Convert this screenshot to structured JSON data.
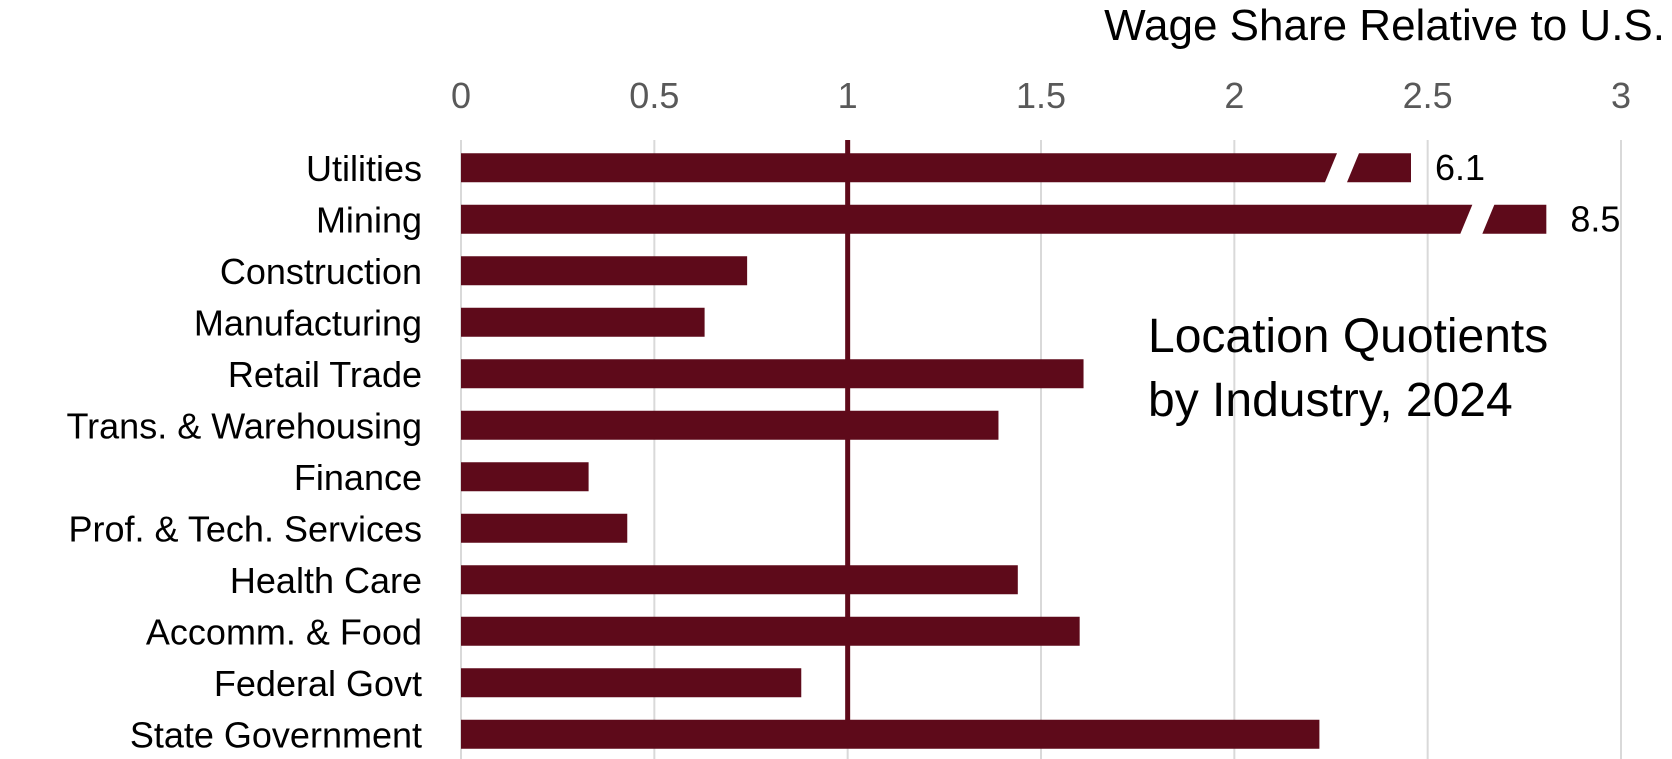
{
  "chart_data": {
    "type": "bar",
    "orientation": "horizontal",
    "title": "",
    "xlabel": "Wage Share Relative to U.S.",
    "ylabel": "",
    "xlim": [
      0,
      3
    ],
    "x_ticks": [
      "0",
      "0.5",
      "1",
      "1.5",
      "2",
      "2.5",
      "3"
    ],
    "grid": true,
    "reference_line": 1,
    "categories": [
      "Utilities",
      "Mining",
      "Construction",
      "Manufacturing",
      "Retail Trade",
      "Trans. & Warehousing",
      "Finance",
      "Prof. & Tech. Services",
      "Health Care",
      "Accomm. & Food",
      "Federal Govt",
      "State Government"
    ],
    "values": [
      6.1,
      8.5,
      0.74,
      0.63,
      1.61,
      1.39,
      0.33,
      0.43,
      1.44,
      1.6,
      0.88,
      2.22
    ],
    "data_labels": [
      "6.1",
      "8.5",
      "",
      "",
      "",
      "",
      "",
      "",
      "",
      "",
      "",
      ""
    ],
    "annotation": {
      "line1": "Location Quotients",
      "line2": "by Industry, 2024"
    },
    "colors": {
      "bar": "#5e0a1a",
      "grid": "#d9d9d9",
      "reference_line": "#5e0a1a"
    }
  }
}
